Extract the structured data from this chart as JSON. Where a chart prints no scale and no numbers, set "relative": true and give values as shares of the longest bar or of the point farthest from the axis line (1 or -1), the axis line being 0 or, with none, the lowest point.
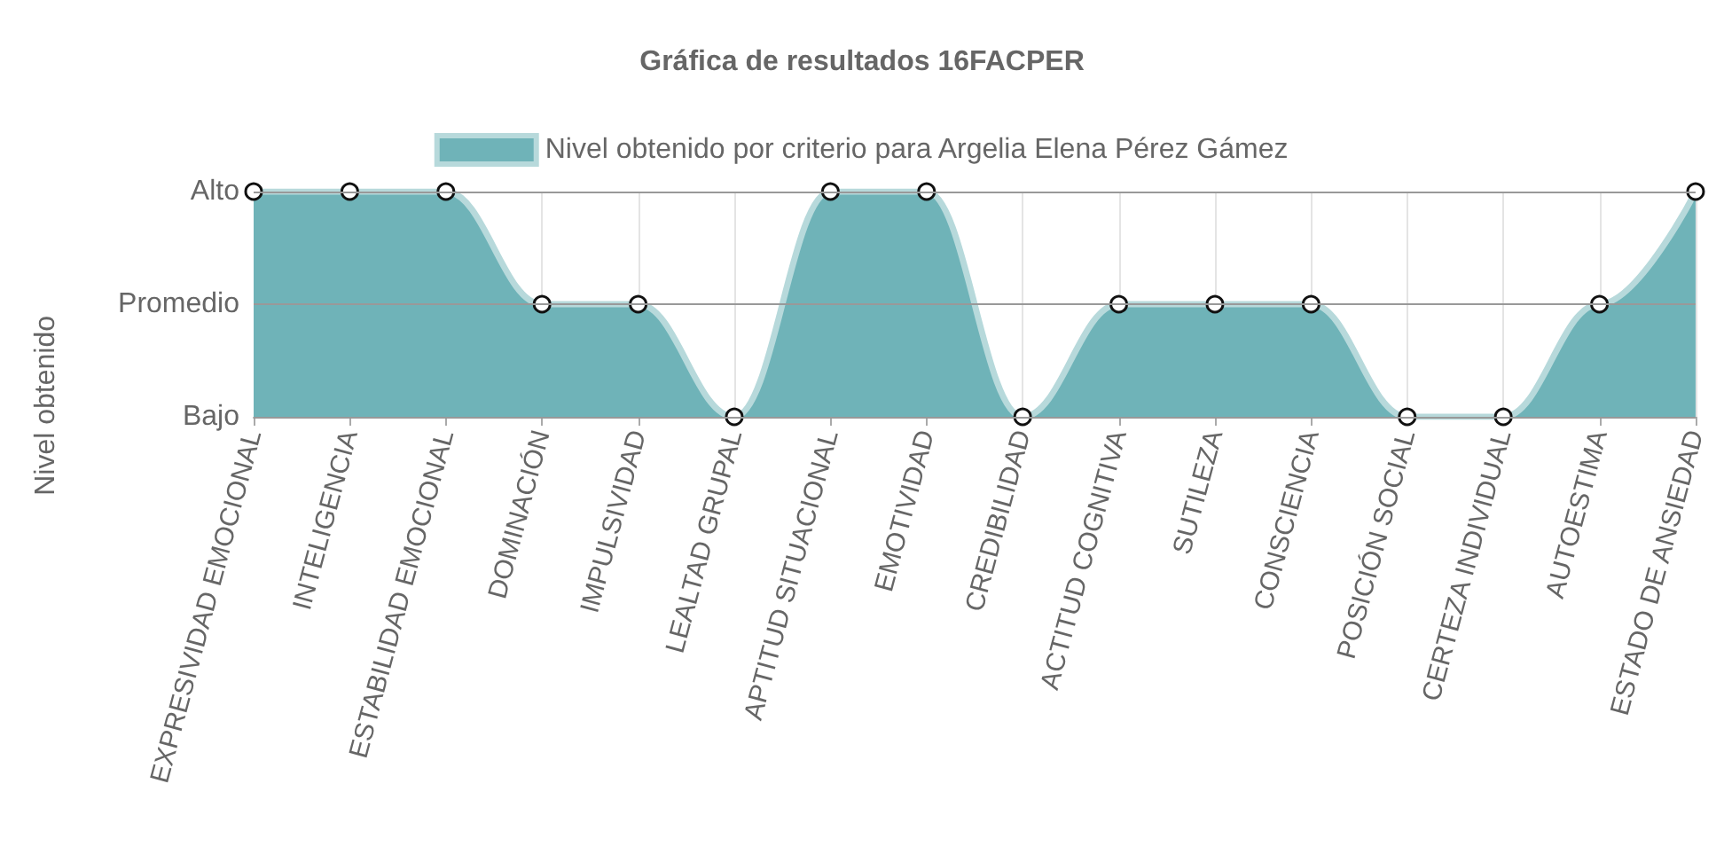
{
  "chart_data": {
    "type": "area",
    "title": "Gráfica de resultados 16FACPER",
    "ylabel": "Nivel obtenido",
    "categories": [
      "EXPRESIVIDAD EMOCIONAL",
      "INTELIGENCIA",
      "ESTABILIDAD EMOCIONAL",
      "DOMINACIÓN",
      "IMPULSIVIDAD",
      "LEALTAD GRUPAL",
      "APTITUD SITUACIONAL",
      "EMOTIVIDAD",
      "CREDIBILIDAD",
      "ACTITUD COGNITIVA",
      "SUTILEZA",
      "CONSCIENCIA",
      "POSICIÓN SOCIAL",
      "CERTEZA INDIVIDUAL",
      "AUTOESTIMA",
      "ESTADO DE ANSIEDAD"
    ],
    "relative": true,
    "series": [
      {
        "name": "Nivel obtenido por criterio para Argelia Elena Pérez Gámez",
        "color": "#6fb3b8",
        "values": [
          1,
          1,
          1,
          0.5,
          0.5,
          0,
          1,
          1,
          0,
          0.5,
          0.5,
          0.5,
          0,
          0,
          0.5,
          1
        ]
      }
    ],
    "ref_lines": [
      {
        "axis": "y",
        "value": 1,
        "label": "Alto"
      },
      {
        "axis": "y",
        "value": 0.5,
        "label": "Promedio"
      },
      {
        "axis": "y",
        "value": 0,
        "label": "Bajo"
      }
    ],
    "grid": "x",
    "legend": "top",
    "marker": "circle"
  }
}
